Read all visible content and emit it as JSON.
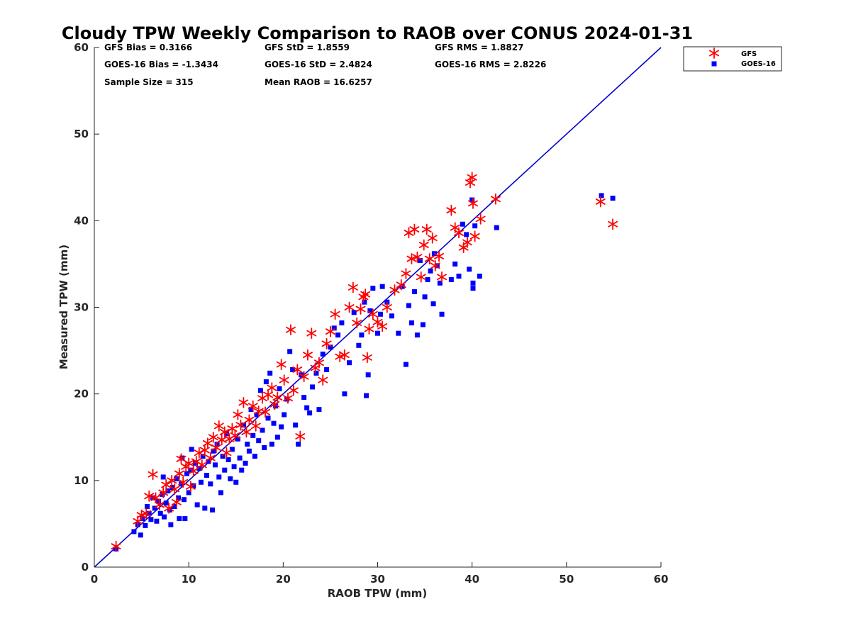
{
  "chart_data": {
    "type": "scatter",
    "title": "Cloudy TPW Weekly Comparison to RAOB over CONUS 2024-01-31",
    "xlabel": "RAOB TPW (mm)",
    "ylabel": "Measured TPW (mm)",
    "xlim": [
      0,
      60
    ],
    "ylim": [
      0,
      60
    ],
    "xticks": [
      "0",
      "10",
      "20",
      "30",
      "40",
      "50",
      "60"
    ],
    "yticks": [
      "0",
      "10",
      "20",
      "30",
      "40",
      "50",
      "60"
    ],
    "grid": false,
    "legend_position": "outside-top-right",
    "stats": [
      [
        "GFS Bias = 0.3166",
        "GFS StD = 1.8559",
        "GFS RMS = 1.8827"
      ],
      [
        "GOES-16 Bias = -1.3434",
        "GOES-16 StD = 2.4824",
        "GOES-16 RMS = 2.8226"
      ],
      [
        "Sample Size = 315",
        "Mean RAOB = 16.6257",
        ""
      ]
    ],
    "reference_line": {
      "x": [
        0,
        60
      ],
      "y": [
        0,
        60
      ],
      "color": "#0000cc"
    },
    "series": [
      {
        "name": "GFS",
        "marker": "asterisk",
        "color": "#ff0000",
        "points": [
          [
            2.3,
            2.4
          ],
          [
            4.6,
            5.3
          ],
          [
            5.0,
            6.0
          ],
          [
            5.5,
            6.2
          ],
          [
            5.8,
            8.2
          ],
          [
            6.2,
            10.7
          ],
          [
            6.5,
            8.0
          ],
          [
            6.9,
            7.2
          ],
          [
            7.3,
            8.6
          ],
          [
            7.6,
            9.5
          ],
          [
            7.9,
            6.8
          ],
          [
            8.2,
            10.0
          ],
          [
            8.5,
            9.0
          ],
          [
            8.7,
            7.5
          ],
          [
            9.0,
            10.8
          ],
          [
            9.2,
            12.5
          ],
          [
            9.4,
            9.8
          ],
          [
            9.7,
            11.6
          ],
          [
            10.0,
            12.0
          ],
          [
            10.2,
            9.3
          ],
          [
            10.5,
            11.1
          ],
          [
            10.8,
            12.2
          ],
          [
            11.1,
            13.2
          ],
          [
            11.4,
            11.8
          ],
          [
            11.7,
            13.5
          ],
          [
            12.0,
            14.3
          ],
          [
            12.3,
            12.6
          ],
          [
            12.6,
            15.0
          ],
          [
            12.9,
            13.8
          ],
          [
            13.2,
            16.3
          ],
          [
            13.5,
            14.7
          ],
          [
            13.8,
            15.6
          ],
          [
            14.0,
            13.2
          ],
          [
            14.3,
            14.8
          ],
          [
            14.6,
            16.0
          ],
          [
            14.9,
            15.2
          ],
          [
            15.2,
            17.6
          ],
          [
            15.5,
            16.4
          ],
          [
            15.8,
            19.0
          ],
          [
            16.1,
            15.6
          ],
          [
            16.4,
            17.0
          ],
          [
            16.8,
            18.6
          ],
          [
            17.1,
            16.3
          ],
          [
            17.4,
            18.0
          ],
          [
            17.8,
            19.5
          ],
          [
            18.1,
            17.9
          ],
          [
            18.4,
            19.9
          ],
          [
            18.8,
            20.7
          ],
          [
            19.1,
            18.8
          ],
          [
            19.4,
            19.6
          ],
          [
            19.8,
            23.4
          ],
          [
            20.1,
            21.6
          ],
          [
            20.5,
            19.5
          ],
          [
            20.8,
            27.4
          ],
          [
            21.1,
            20.4
          ],
          [
            21.5,
            22.8
          ],
          [
            21.8,
            15.1
          ],
          [
            22.2,
            22.0
          ],
          [
            22.6,
            24.5
          ],
          [
            23.0,
            27.0
          ],
          [
            23.4,
            23.0
          ],
          [
            23.8,
            23.6
          ],
          [
            24.2,
            21.6
          ],
          [
            24.6,
            25.8
          ],
          [
            25.0,
            27.2
          ],
          [
            25.5,
            29.2
          ],
          [
            26.0,
            24.3
          ],
          [
            26.5,
            24.5
          ],
          [
            27.0,
            30.0
          ],
          [
            27.4,
            32.3
          ],
          [
            27.8,
            28.2
          ],
          [
            28.2,
            29.8
          ],
          [
            28.5,
            31.2
          ],
          [
            28.7,
            31.5
          ],
          [
            28.9,
            24.2
          ],
          [
            29.1,
            27.5
          ],
          [
            29.5,
            29.2
          ],
          [
            30.0,
            28.3
          ],
          [
            30.5,
            27.8
          ],
          [
            31.0,
            30.0
          ],
          [
            31.8,
            32.0
          ],
          [
            32.5,
            32.6
          ],
          [
            33.0,
            33.9
          ],
          [
            33.3,
            38.6
          ],
          [
            33.6,
            35.6
          ],
          [
            33.9,
            39.0
          ],
          [
            34.2,
            35.8
          ],
          [
            34.6,
            33.5
          ],
          [
            34.9,
            37.2
          ],
          [
            35.2,
            39.0
          ],
          [
            35.5,
            35.6
          ],
          [
            35.8,
            38.0
          ],
          [
            36.1,
            34.8
          ],
          [
            36.5,
            35.9
          ],
          [
            36.8,
            33.5
          ],
          [
            37.8,
            41.2
          ],
          [
            38.2,
            39.2
          ],
          [
            38.6,
            38.6
          ],
          [
            39.1,
            36.9
          ],
          [
            39.5,
            37.5
          ],
          [
            39.8,
            44.4
          ],
          [
            40.0,
            45.0
          ],
          [
            40.1,
            42.0
          ],
          [
            40.3,
            38.2
          ],
          [
            40.9,
            40.2
          ],
          [
            42.5,
            42.5
          ],
          [
            53.6,
            42.2
          ],
          [
            54.9,
            39.6
          ]
        ]
      },
      {
        "name": "GOES-16",
        "marker": "square",
        "color": "#0000ff",
        "points": [
          [
            2.3,
            2.1
          ],
          [
            4.2,
            4.1
          ],
          [
            4.6,
            4.9
          ],
          [
            4.9,
            3.7
          ],
          [
            5.1,
            5.6
          ],
          [
            5.4,
            4.8
          ],
          [
            5.6,
            7.0
          ],
          [
            5.8,
            6.2
          ],
          [
            6.0,
            5.5
          ],
          [
            6.2,
            8.0
          ],
          [
            6.4,
            6.8
          ],
          [
            6.6,
            5.3
          ],
          [
            6.8,
            7.6
          ],
          [
            7.0,
            6.2
          ],
          [
            7.2,
            8.4
          ],
          [
            7.3,
            10.4
          ],
          [
            7.4,
            5.8
          ],
          [
            7.6,
            7.4
          ],
          [
            7.8,
            8.8
          ],
          [
            8.0,
            6.6
          ],
          [
            8.1,
            4.9
          ],
          [
            8.3,
            9.2
          ],
          [
            8.5,
            7.0
          ],
          [
            8.7,
            10.2
          ],
          [
            8.9,
            8.0
          ],
          [
            9.0,
            5.6
          ],
          [
            9.2,
            9.6
          ],
          [
            9.3,
            12.6
          ],
          [
            9.5,
            7.8
          ],
          [
            9.6,
            5.6
          ],
          [
            9.8,
            10.8
          ],
          [
            10.0,
            8.6
          ],
          [
            10.2,
            11.2
          ],
          [
            10.3,
            13.6
          ],
          [
            10.5,
            9.4
          ],
          [
            10.7,
            12.0
          ],
          [
            10.9,
            7.2
          ],
          [
            11.1,
            11.4
          ],
          [
            11.3,
            9.8
          ],
          [
            11.5,
            12.8
          ],
          [
            11.7,
            6.8
          ],
          [
            11.9,
            10.6
          ],
          [
            12.1,
            12.2
          ],
          [
            12.3,
            9.6
          ],
          [
            12.5,
            6.6
          ],
          [
            12.6,
            13.4
          ],
          [
            12.8,
            11.8
          ],
          [
            13.0,
            14.2
          ],
          [
            13.2,
            10.4
          ],
          [
            13.4,
            8.6
          ],
          [
            13.6,
            12.8
          ],
          [
            13.8,
            11.2
          ],
          [
            14.0,
            15.4
          ],
          [
            14.2,
            12.4
          ],
          [
            14.4,
            10.2
          ],
          [
            14.6,
            13.6
          ],
          [
            14.8,
            11.6
          ],
          [
            15.0,
            9.8
          ],
          [
            15.2,
            14.8
          ],
          [
            15.4,
            12.6
          ],
          [
            15.6,
            11.2
          ],
          [
            15.8,
            16.4
          ],
          [
            16.0,
            12.0
          ],
          [
            16.2,
            14.2
          ],
          [
            16.4,
            13.4
          ],
          [
            16.6,
            18.2
          ],
          [
            16.8,
            15.2
          ],
          [
            17.0,
            12.8
          ],
          [
            17.2,
            17.6
          ],
          [
            17.4,
            14.6
          ],
          [
            17.6,
            20.4
          ],
          [
            17.8,
            15.8
          ],
          [
            18.0,
            13.8
          ],
          [
            18.2,
            21.4
          ],
          [
            18.4,
            17.2
          ],
          [
            18.6,
            22.4
          ],
          [
            18.8,
            14.2
          ],
          [
            19.0,
            16.6
          ],
          [
            19.2,
            18.6
          ],
          [
            19.4,
            15.0
          ],
          [
            19.6,
            20.6
          ],
          [
            19.8,
            16.2
          ],
          [
            20.1,
            17.6
          ],
          [
            20.4,
            19.4
          ],
          [
            20.7,
            24.9
          ],
          [
            21.0,
            22.8
          ],
          [
            21.3,
            16.4
          ],
          [
            21.6,
            14.2
          ],
          [
            21.9,
            22.2
          ],
          [
            22.2,
            19.6
          ],
          [
            22.5,
            18.4
          ],
          [
            22.8,
            17.8
          ],
          [
            23.1,
            20.8
          ],
          [
            23.5,
            22.4
          ],
          [
            23.8,
            18.2
          ],
          [
            24.2,
            24.6
          ],
          [
            24.6,
            22.8
          ],
          [
            25.0,
            25.4
          ],
          [
            25.4,
            27.6
          ],
          [
            25.8,
            26.8
          ],
          [
            26.2,
            28.2
          ],
          [
            26.5,
            20.0
          ],
          [
            27.0,
            23.6
          ],
          [
            27.5,
            29.4
          ],
          [
            28.0,
            25.6
          ],
          [
            28.3,
            26.8
          ],
          [
            28.6,
            30.6
          ],
          [
            28.8,
            19.8
          ],
          [
            29.0,
            22.2
          ],
          [
            29.2,
            29.6
          ],
          [
            29.5,
            32.2
          ],
          [
            30.0,
            27.0
          ],
          [
            30.3,
            29.2
          ],
          [
            30.5,
            32.4
          ],
          [
            31.0,
            30.6
          ],
          [
            31.5,
            29.0
          ],
          [
            32.2,
            27.0
          ],
          [
            32.6,
            32.4
          ],
          [
            33.0,
            23.4
          ],
          [
            33.3,
            30.2
          ],
          [
            33.6,
            28.2
          ],
          [
            33.9,
            31.8
          ],
          [
            34.2,
            26.8
          ],
          [
            34.5,
            35.4
          ],
          [
            34.8,
            28.0
          ],
          [
            35.0,
            31.2
          ],
          [
            35.3,
            33.2
          ],
          [
            35.6,
            34.2
          ],
          [
            35.9,
            30.4
          ],
          [
            36.0,
            36.2
          ],
          [
            36.3,
            34.8
          ],
          [
            36.6,
            32.8
          ],
          [
            36.8,
            29.2
          ],
          [
            37.8,
            33.2
          ],
          [
            38.2,
            35.0
          ],
          [
            38.6,
            33.6
          ],
          [
            39.0,
            39.6
          ],
          [
            39.4,
            38.4
          ],
          [
            39.7,
            34.4
          ],
          [
            40.0,
            42.4
          ],
          [
            40.1,
            32.8
          ],
          [
            40.1,
            32.2
          ],
          [
            40.3,
            39.4
          ],
          [
            40.8,
            33.6
          ],
          [
            42.6,
            39.2
          ],
          [
            53.7,
            42.9
          ],
          [
            54.9,
            42.6
          ]
        ]
      }
    ]
  }
}
